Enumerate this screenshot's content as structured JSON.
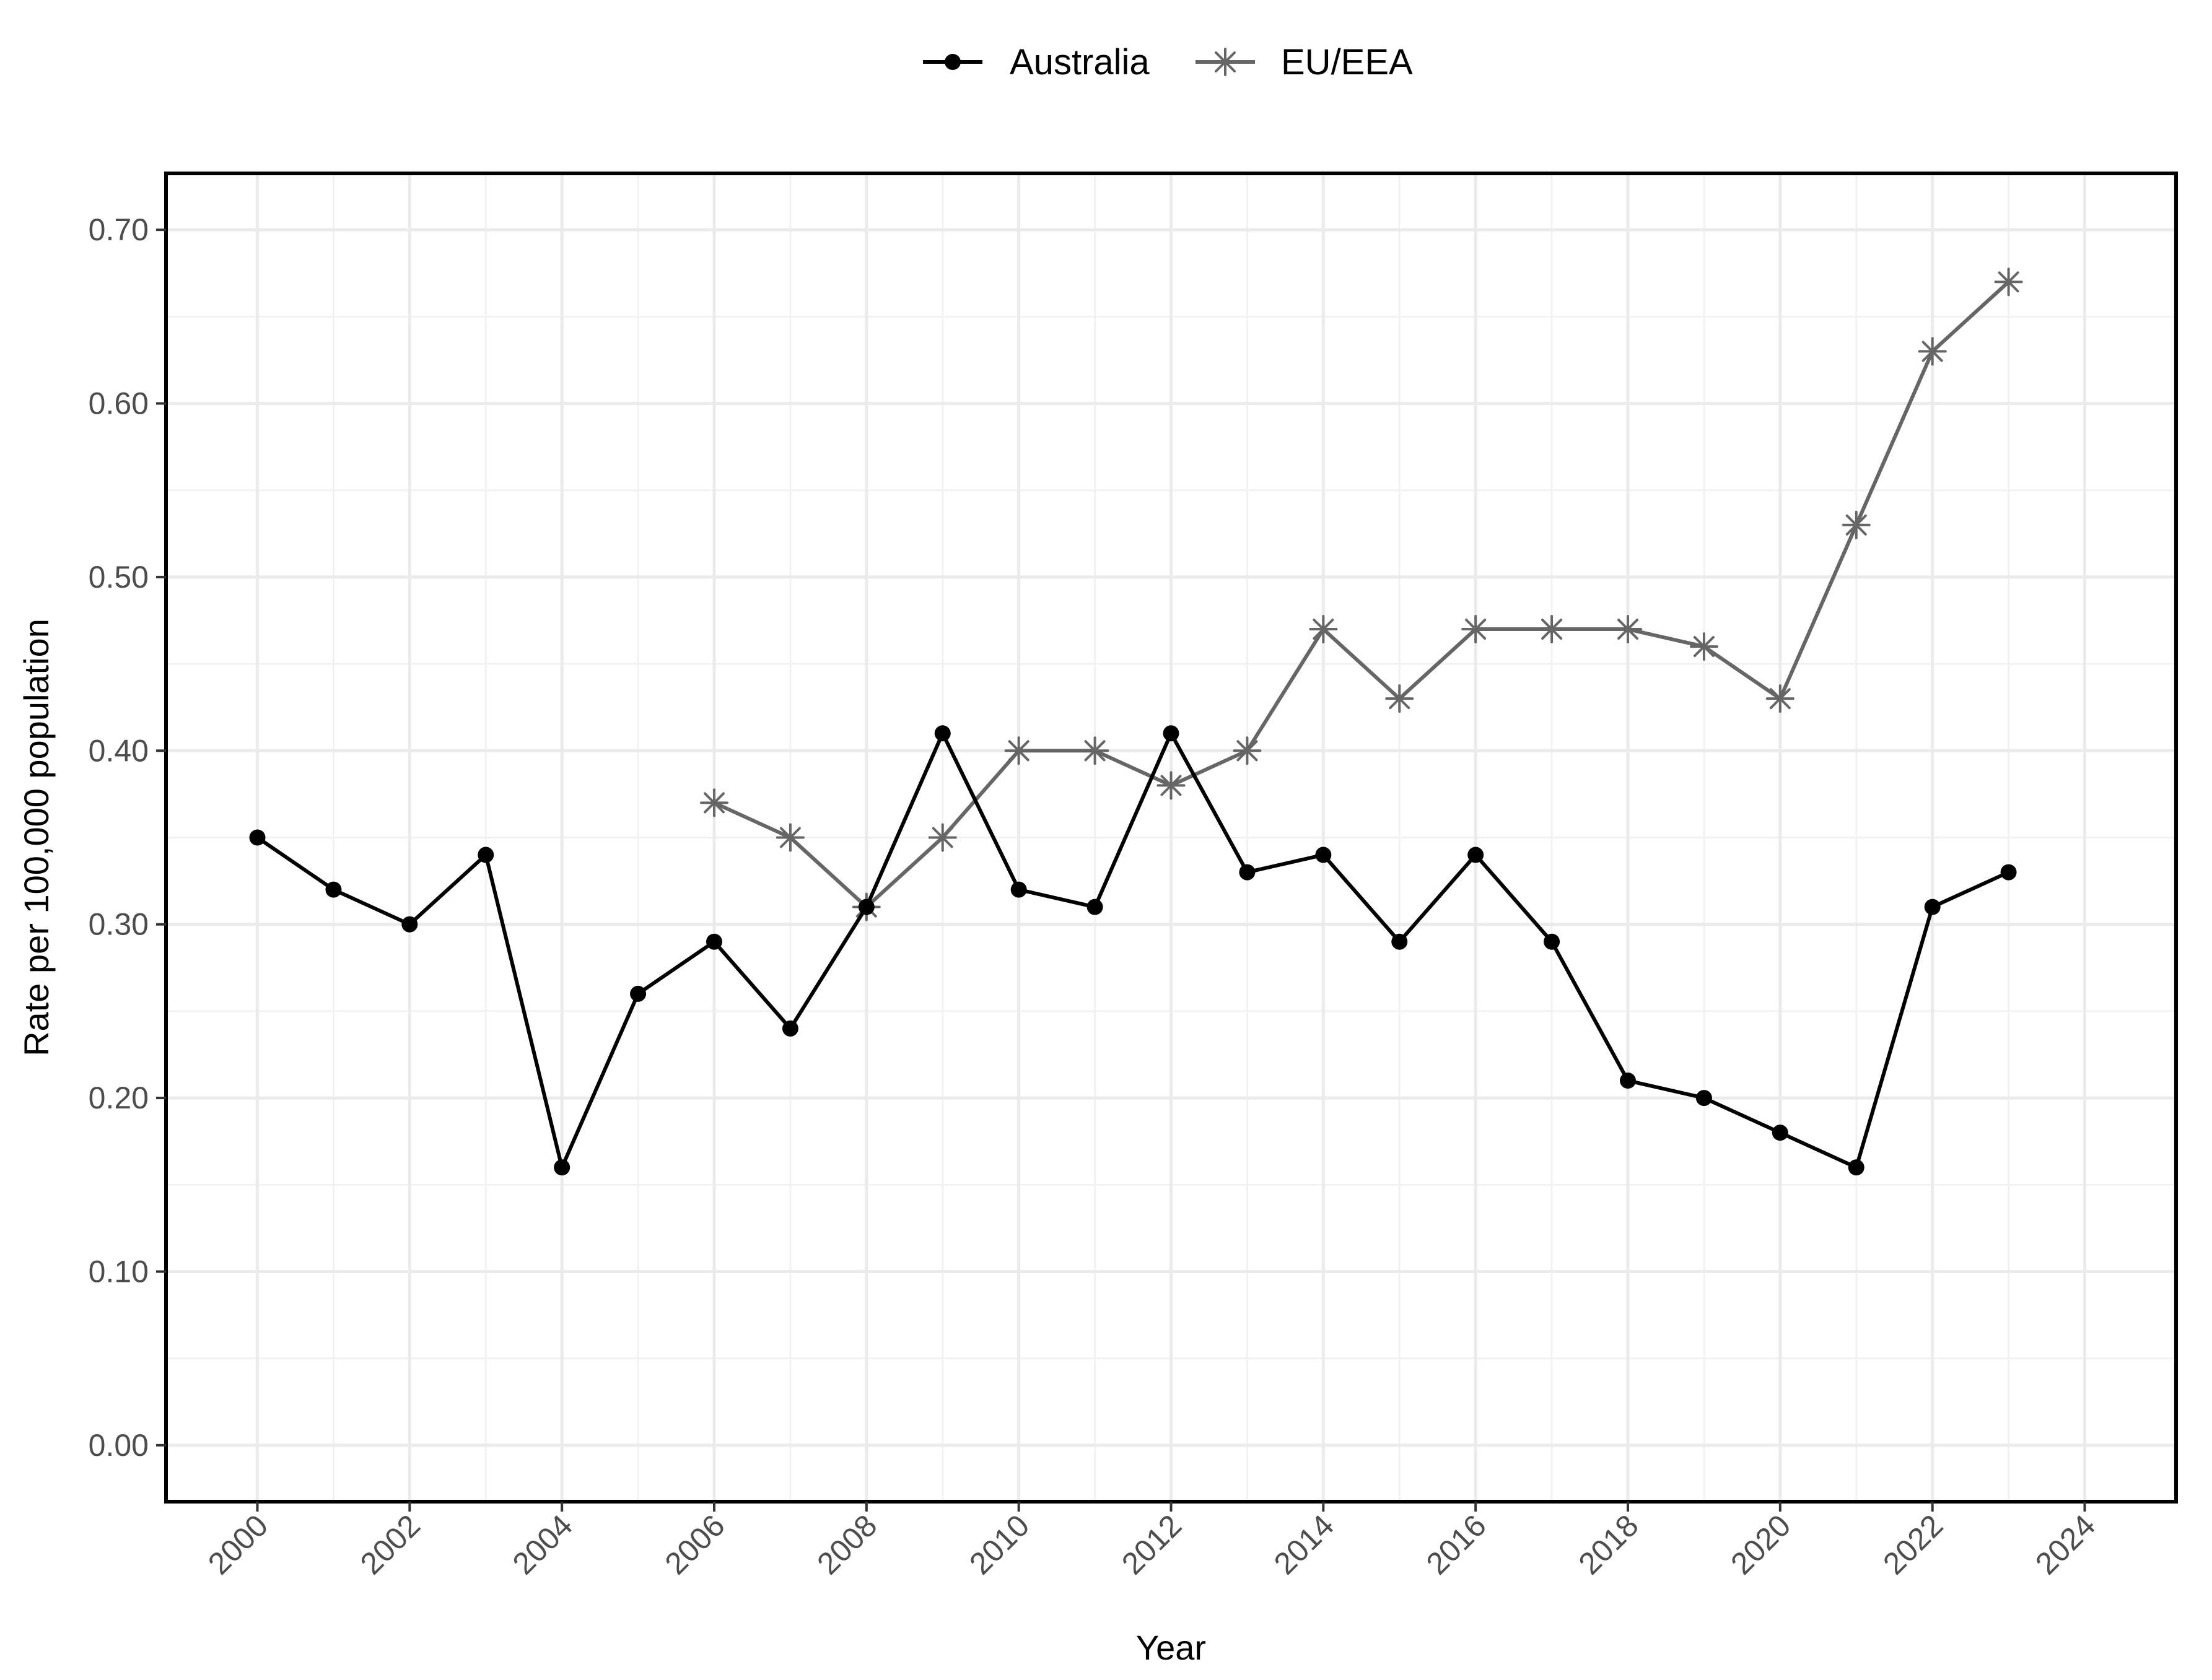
{
  "chart_data": {
    "type": "line",
    "title": "",
    "xlabel": "Year",
    "ylabel": "Rate per 100,000 population",
    "xlim": [
      1998.8,
      2025.2
    ],
    "ylim": [
      -0.0325,
      0.7325
    ],
    "x_ticks": [
      "2000",
      "2002",
      "2004",
      "2006",
      "2008",
      "2010",
      "2012",
      "2014",
      "2016",
      "2018",
      "2020",
      "2022",
      "2024"
    ],
    "y_ticks": [
      "0.00",
      "0.10",
      "0.20",
      "0.30",
      "0.40",
      "0.50",
      "0.60",
      "0.70"
    ],
    "grid": true,
    "legend_position": "top",
    "series": [
      {
        "name": "Australia",
        "marker": "circle",
        "color": "#000000",
        "x": [
          2000,
          2001,
          2002,
          2003,
          2004,
          2005,
          2006,
          2007,
          2008,
          2009,
          2010,
          2011,
          2012,
          2013,
          2014,
          2015,
          2016,
          2017,
          2018,
          2019,
          2020,
          2021,
          2022,
          2023
        ],
        "y": [
          0.35,
          0.32,
          0.3,
          0.34,
          0.16,
          0.26,
          0.29,
          0.24,
          0.31,
          0.41,
          0.32,
          0.31,
          0.41,
          0.33,
          0.34,
          0.29,
          0.34,
          0.29,
          0.21,
          0.2,
          0.18,
          0.16,
          0.31,
          0.33
        ]
      },
      {
        "name": "EU/EEA",
        "marker": "asterisk",
        "color": "#666666",
        "x": [
          2006,
          2007,
          2008,
          2009,
          2010,
          2011,
          2012,
          2013,
          2014,
          2015,
          2016,
          2017,
          2018,
          2019,
          2020,
          2021,
          2022,
          2023
        ],
        "y": [
          0.37,
          0.35,
          0.31,
          0.35,
          0.4,
          0.4,
          0.38,
          0.4,
          0.47,
          0.43,
          0.47,
          0.47,
          0.47,
          0.46,
          0.43,
          0.53,
          0.63,
          0.67
        ]
      }
    ]
  }
}
